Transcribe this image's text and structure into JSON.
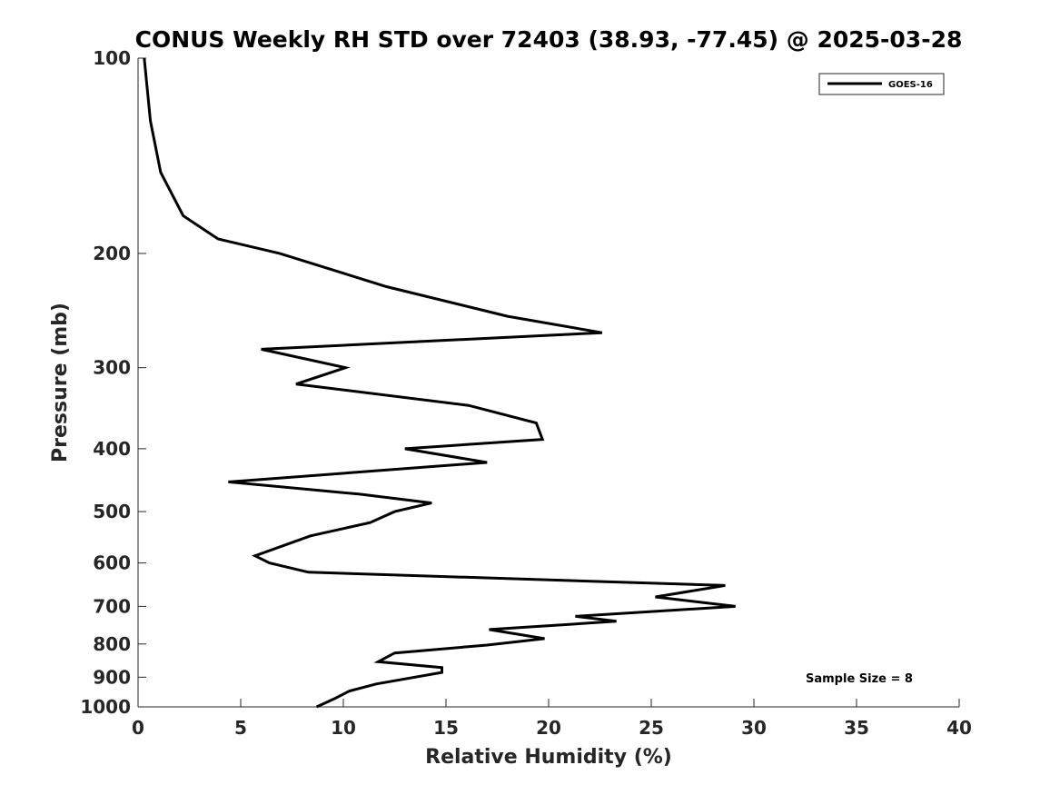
{
  "chart_data": {
    "type": "line",
    "title": "CONUS Weekly RH STD over 72403 (38.93, -77.45) @ 2025-03-28",
    "xlabel": "Relative Humidity (%)",
    "ylabel": "Pressure (mb)",
    "xlim": [
      0,
      40
    ],
    "ylim": [
      100,
      1000
    ],
    "y_scale": "log",
    "y_reversed": true,
    "x_ticks": [
      0,
      5,
      10,
      15,
      20,
      25,
      30,
      35,
      40
    ],
    "y_ticks": [
      100,
      200,
      300,
      400,
      500,
      600,
      700,
      800,
      900,
      1000
    ],
    "grid": false,
    "legend_position": "top-right",
    "annotation": "Sample Size = 8",
    "colors": {
      "series": "#000000",
      "axes": "#262626"
    },
    "series": [
      {
        "name": "GOES-16",
        "x": [
          0.3,
          0.6,
          1.1,
          2.2,
          3.9,
          6.9,
          12.1,
          18.0,
          22.6,
          6.0,
          10.1,
          7.7,
          16.1,
          19.4,
          19.7,
          13.0,
          17.0,
          4.4,
          10.8,
          14.3,
          12.5,
          11.3,
          8.4,
          5.7,
          6.4,
          8.3,
          28.6,
          25.2,
          29.1,
          21.3,
          23.3,
          17.1,
          19.8,
          17.0,
          12.5,
          11.7,
          14.8,
          14.8,
          11.6,
          10.3,
          9.6,
          8.7
        ],
        "y": [
          100,
          125,
          150,
          175,
          190,
          200,
          225,
          250,
          265,
          281,
          300,
          318,
          343,
          365,
          387,
          400,
          420,
          450,
          470,
          485,
          500,
          520,
          545,
          585,
          600,
          620,
          650,
          677,
          700,
          725,
          738,
          760,
          785,
          803,
          826,
          852,
          870,
          885,
          922,
          945,
          970,
          1000
        ]
      }
    ]
  }
}
